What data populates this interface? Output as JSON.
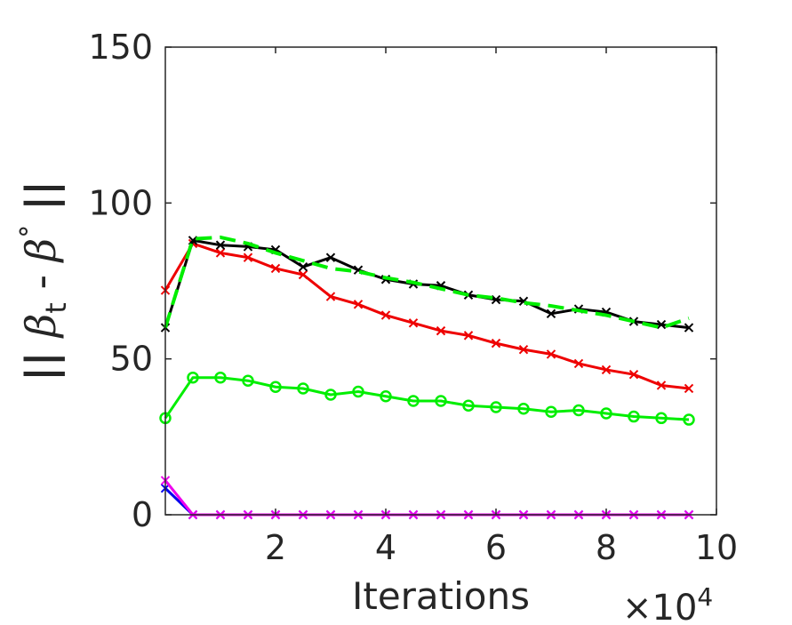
{
  "chart_data": {
    "type": "line",
    "xlabel": "Iterations",
    "x_multiplier_label": "×10",
    "x_multiplier_exponent": "4",
    "ylabel": {
      "prefix": "|| ",
      "beta": "β",
      "subscript": "t",
      "mid": " - ",
      "beta2": "β",
      "superscript": "°",
      "suffix": " ||"
    },
    "xlim": [
      0,
      10
    ],
    "ylim": [
      0,
      150
    ],
    "xticks": [
      2,
      4,
      6,
      8,
      10
    ],
    "xtick_labels": [
      "2",
      "4",
      "6",
      "8",
      "10"
    ],
    "yticks": [
      0,
      50,
      100,
      150
    ],
    "ytick_labels": [
      "0",
      "50",
      "100",
      "150"
    ],
    "grid": false,
    "x": [
      0,
      0.5,
      1,
      1.5,
      2,
      2.5,
      3,
      3.5,
      4,
      4.5,
      5,
      5.5,
      6,
      6.5,
      7,
      7.5,
      8,
      8.5,
      9,
      9.5
    ],
    "series": [
      {
        "color": "#00ee00",
        "style": "solid",
        "marker": "o",
        "values": [
          31,
          44,
          44,
          43,
          41,
          40.5,
          38.5,
          39.5,
          38,
          36.5,
          36.5,
          35,
          34.5,
          34,
          33,
          33.5,
          32.5,
          31.5,
          31,
          30.5
        ]
      },
      {
        "color": "#ee0000",
        "style": "solid",
        "marker": "x",
        "values": [
          72,
          87,
          84,
          82.5,
          79,
          77,
          70,
          67.5,
          64,
          61.5,
          59,
          57.5,
          55,
          53,
          51.5,
          48.5,
          46.5,
          45,
          41.5,
          40.5
        ]
      },
      {
        "color": "#000000",
        "style": "solid",
        "marker": "x",
        "values": [
          60,
          88,
          86.5,
          86,
          85,
          79.5,
          82.5,
          78.5,
          75.5,
          74,
          73.5,
          70.5,
          69,
          68.5,
          64.5,
          66,
          65,
          62,
          61,
          60
        ]
      },
      {
        "color": "#00ee00",
        "style": "dashed",
        "marker": "",
        "values": [
          60,
          88.5,
          89,
          87,
          84,
          81.5,
          79,
          78,
          76,
          74.5,
          72.5,
          70.5,
          69.5,
          68,
          67,
          65.5,
          64,
          62,
          60,
          63
        ]
      },
      {
        "color": "#0000ee",
        "style": "solid",
        "marker": "x",
        "values": [
          8.5,
          0,
          0,
          0,
          0,
          0,
          0,
          0,
          0,
          0,
          0,
          0,
          0,
          0,
          0,
          0,
          0,
          0,
          0,
          0
        ]
      },
      {
        "color": "#ee00ee",
        "style": "solid",
        "marker": "x",
        "values": [
          11,
          0,
          0,
          0,
          0,
          0,
          0,
          0,
          0,
          0,
          0,
          0,
          0,
          0,
          0,
          0,
          0,
          0,
          0,
          0
        ]
      }
    ]
  }
}
